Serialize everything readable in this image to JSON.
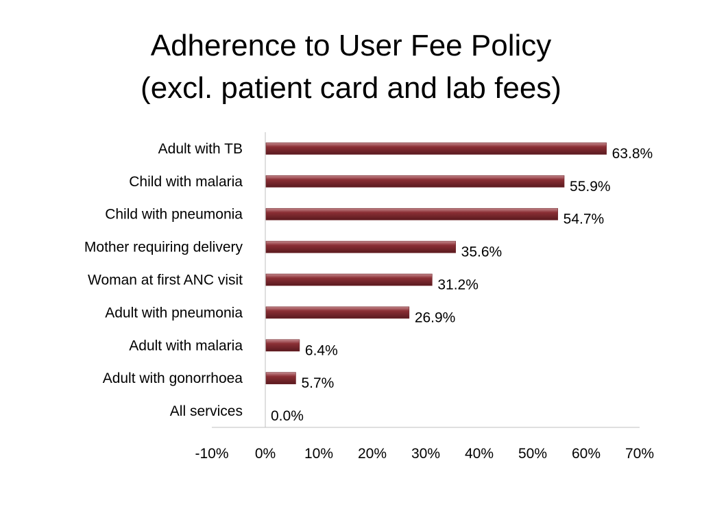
{
  "chart_data": {
    "type": "bar",
    "orientation": "horizontal",
    "title_lines": [
      "Adherence to User Fee Policy",
      "(excl. patient card and lab fees)"
    ],
    "categories": [
      "Adult with TB",
      "Child with malaria",
      "Child with pneumonia",
      "Mother requiring delivery",
      "Woman at first ANC visit",
      "Adult with pneumonia",
      "Adult with malaria",
      "Adult with gonorrhoea",
      "All services"
    ],
    "values": [
      63.8,
      55.9,
      54.7,
      35.6,
      31.2,
      26.9,
      6.4,
      5.7,
      0.0
    ],
    "value_labels": [
      "63.8%",
      "55.9%",
      "54.7%",
      "35.6%",
      "31.2%",
      "26.9%",
      "6.4%",
      "5.7%",
      "0.0%"
    ],
    "xlim": [
      -10,
      70
    ],
    "xticks": [
      -10,
      0,
      10,
      20,
      30,
      40,
      50,
      60,
      70
    ],
    "xtick_labels": [
      "-10%",
      "0%",
      "10%",
      "20%",
      "30%",
      "40%",
      "50%",
      "60%",
      "70%"
    ],
    "bar_color": "#8b2f35",
    "grid": false,
    "legend": "none"
  }
}
